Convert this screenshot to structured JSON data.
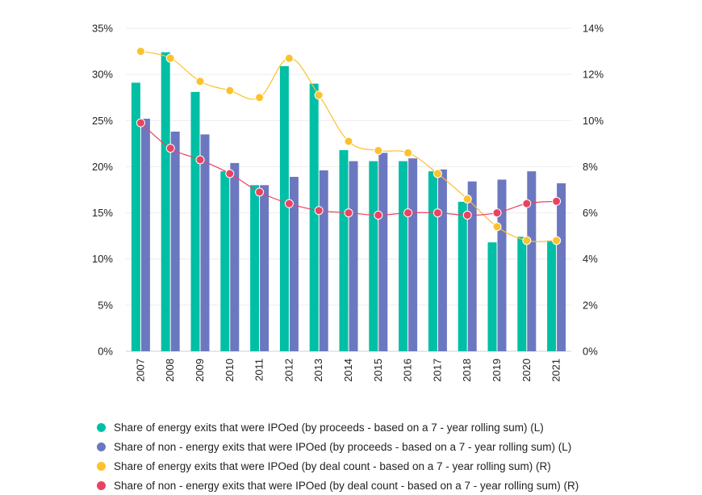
{
  "chart_data": {
    "type": "bar+line",
    "categories": [
      "2007",
      "2008",
      "2009",
      "2010",
      "2011",
      "2012",
      "2013",
      "2014",
      "2015",
      "2016",
      "2017",
      "2018",
      "2019",
      "2020",
      "2021"
    ],
    "y_left": {
      "ticks": [
        "0%",
        "5%",
        "10%",
        "15%",
        "20%",
        "25%",
        "30%",
        "35%"
      ],
      "lim": [
        0,
        35
      ]
    },
    "y_right": {
      "ticks": [
        "0%",
        "2%",
        "4%",
        "6%",
        "8%",
        "10%",
        "12%",
        "14%"
      ],
      "lim": [
        0,
        14
      ]
    },
    "grid": true,
    "legend_position": "bottom",
    "series": [
      {
        "name": "Share of energy exits that were IPOed (by proceeds - based on a 7 - year rolling sum) (L)",
        "kind": "bar",
        "axis": "left",
        "color": "#00bfa5",
        "values": [
          29.1,
          32.4,
          28.1,
          19.5,
          18.0,
          30.9,
          29.0,
          21.8,
          20.6,
          20.6,
          19.5,
          16.2,
          11.8,
          12.4,
          12.0
        ]
      },
      {
        "name": "Share of non - energy exits that were IPOed (by proceeds - based on a 7 - year rolling sum) (L)",
        "kind": "bar",
        "axis": "left",
        "color": "#6b78c0",
        "values": [
          25.2,
          23.8,
          23.5,
          20.4,
          18.0,
          18.9,
          19.6,
          20.6,
          21.5,
          20.9,
          19.7,
          18.4,
          18.6,
          19.5,
          18.2
        ]
      },
      {
        "name": "Share of energy exits that were IPOed (by deal count - based on a 7 - year rolling sum) (R)",
        "kind": "line",
        "axis": "right",
        "color": "#fcc12d",
        "values": [
          13.0,
          12.7,
          11.7,
          11.3,
          11.0,
          12.7,
          11.1,
          9.1,
          8.7,
          8.6,
          7.7,
          6.6,
          5.4,
          4.8,
          4.8
        ]
      },
      {
        "name": "Share of non - energy exits that were IPOed (by deal count - based on a 7 - year rolling sum) (R)",
        "kind": "line",
        "axis": "right",
        "color": "#e84461",
        "values": [
          9.9,
          8.8,
          8.3,
          7.7,
          6.9,
          6.4,
          6.1,
          6.0,
          5.9,
          6.0,
          6.0,
          5.9,
          6.0,
          6.4,
          6.5
        ]
      }
    ]
  }
}
